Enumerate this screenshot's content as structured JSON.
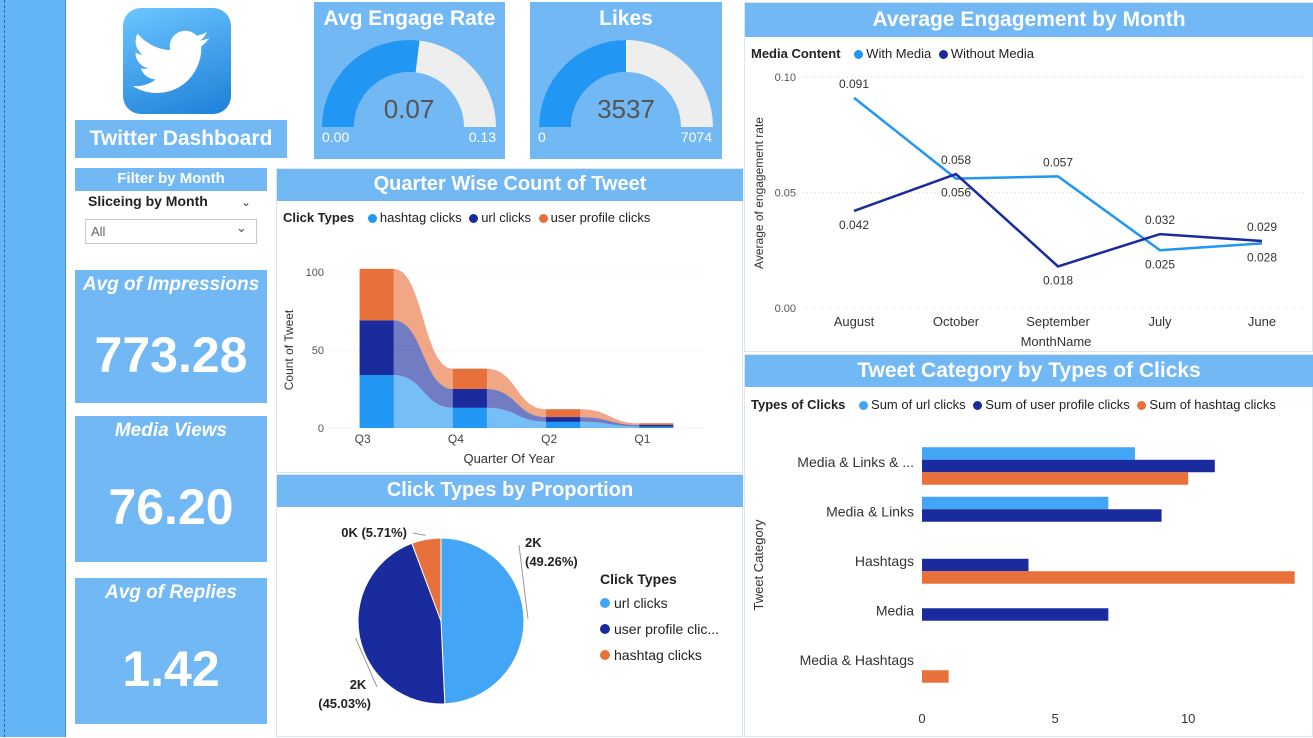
{
  "dashboard_title": "Twitter Dashboard",
  "filter": {
    "title": "Filter by Month",
    "label": "Sliceing by Month",
    "value": "All"
  },
  "kpis": [
    {
      "title": "Avg of Impressions",
      "value": "773.28"
    },
    {
      "title": "Media Views",
      "value": "76.20"
    },
    {
      "title": "Avg of Replies",
      "value": "1.42"
    }
  ],
  "colors": {
    "light_blue": "#2196f3",
    "dark_blue": "#1a2b9e",
    "orange": "#e8703a",
    "panel": "#72b8f5"
  },
  "chart_data": [
    {
      "type": "gauge",
      "title": "Avg Engage Rate",
      "value": 0.07,
      "value_label": "0.07",
      "min_label": "0.00",
      "max_label": "0.13",
      "min": 0,
      "max": 0.13
    },
    {
      "type": "gauge",
      "title": "Likes",
      "value": 3537,
      "value_label": "3537",
      "min_label": "0",
      "max_label": "7074",
      "min": 0,
      "max": 7074
    },
    {
      "type": "area",
      "title": "Quarter Wise Count of Tweet",
      "legend_title": "Click Types",
      "legend_position": "top-left",
      "xlabel": "Quarter Of Year",
      "ylabel": "Count of Tweet",
      "categories": [
        "Q3",
        "Q4",
        "Q2",
        "Q1"
      ],
      "yticks": [
        "0",
        "50",
        "100"
      ],
      "ylim": [
        0,
        100
      ],
      "stacked": true,
      "series": [
        {
          "name": "hashtag clicks",
          "values": [
            34,
            13,
            4,
            1
          ]
        },
        {
          "name": "url clicks",
          "values": [
            35,
            12,
            3,
            1
          ]
        },
        {
          "name": "user profile clicks",
          "values": [
            33,
            13,
            5,
            1
          ]
        }
      ]
    },
    {
      "type": "pie",
      "title": "Click Types by Proportion",
      "legend_title": "Click Types",
      "legend_position": "right",
      "slices": [
        {
          "name": "url clicks",
          "value": 49.26,
          "label": "2K",
          "pct": "(49.26%)"
        },
        {
          "name": "user profile clic...",
          "value": 45.03,
          "label": "2K",
          "pct": "(45.03%)"
        },
        {
          "name": "hashtag clicks",
          "value": 5.71,
          "label": "0K",
          "pct": "(5.71%)"
        }
      ]
    },
    {
      "type": "line",
      "title": "Average Engagement by Month",
      "legend_title": "Media Content",
      "legend_position": "top-left",
      "xlabel": "MonthName",
      "ylabel": "Average of engagement rate",
      "categories": [
        "August",
        "October",
        "September",
        "July",
        "June"
      ],
      "yticks": [
        "0.00",
        "0.05",
        "0.10"
      ],
      "ylim": [
        0,
        0.1
      ],
      "series": [
        {
          "name": "With Media",
          "values": [
            0.091,
            0.056,
            0.057,
            0.025,
            0.028
          ],
          "labels": [
            "0.091",
            "0.056",
            "0.057",
            "0.025",
            "0.028"
          ]
        },
        {
          "name": "Without Media",
          "values": [
            0.042,
            0.058,
            0.018,
            0.032,
            0.029
          ],
          "labels": [
            "0.042",
            "0.058",
            "0.018",
            "0.032",
            "0.029"
          ]
        }
      ]
    },
    {
      "type": "bar",
      "orientation": "horizontal",
      "title": "Tweet Category by Types of Clicks",
      "legend_title": "Types of Clicks",
      "legend_position": "top-left",
      "ylabel": "Tweet Category",
      "categories": [
        "Media & Links & ...",
        "Media & Links",
        "Hashtags",
        "Media",
        "Media & Hashtags"
      ],
      "xticks": [
        "0",
        "5",
        "10"
      ],
      "xlim": [
        0,
        14.2
      ],
      "series": [
        {
          "name": "Sum of url clicks",
          "values": [
            8,
            7,
            0,
            0,
            0
          ]
        },
        {
          "name": "Sum of user profile clicks",
          "values": [
            11,
            9,
            4,
            7,
            0
          ]
        },
        {
          "name": "Sum of hashtag clicks",
          "values": [
            10,
            0,
            14,
            0,
            1
          ]
        }
      ]
    }
  ]
}
